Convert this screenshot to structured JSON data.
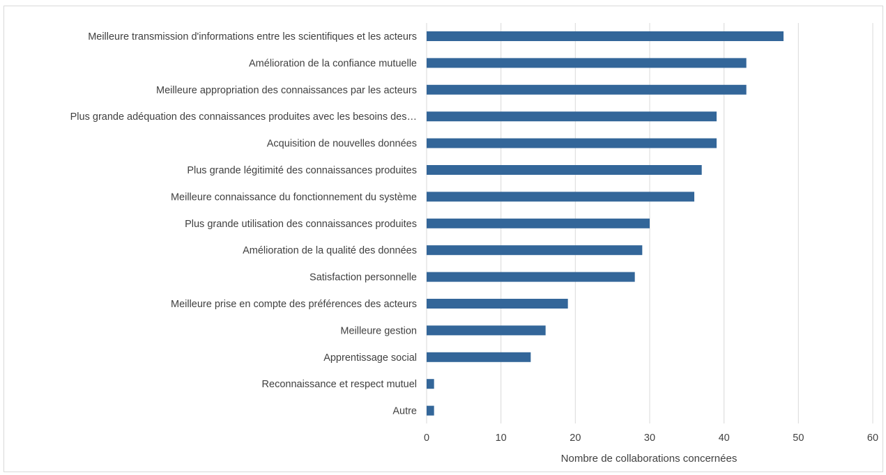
{
  "chart_data": {
    "type": "bar",
    "orientation": "horizontal",
    "categories": [
      "Meilleure transmission d'informations entre les scientifiques et les acteurs",
      "Amélioration de la confiance mutuelle",
      "Meilleure appropriation des connaissances par les acteurs",
      "Plus grande adéquation des connaissances produites avec les besoins des…",
      "Acquisition de nouvelles données",
      "Plus grande légitimité des connaissances produites",
      "Meilleure connaissance du fonctionnement du système",
      "Plus grande utilisation des connaissances produites",
      "Amélioration de la qualité des données",
      "Satisfaction personnelle",
      "Meilleure prise en compte des préférences des acteurs",
      "Meilleure gestion",
      "Apprentissage social",
      "Reconnaissance et respect mutuel",
      "Autre"
    ],
    "values": [
      48,
      43,
      43,
      39,
      39,
      37,
      36,
      30,
      29,
      28,
      19,
      16,
      14,
      1,
      1
    ],
    "xlabel": "Nombre de collaborations concernées",
    "ylabel": "",
    "xlim": [
      0,
      60
    ],
    "xticks": [
      "0",
      "10",
      "20",
      "30",
      "40",
      "50",
      "60"
    ],
    "grid": "vertical",
    "legend": "none",
    "colors": {
      "bar": "#336699",
      "grid": "#d9d9d9",
      "text": "#404040"
    }
  }
}
